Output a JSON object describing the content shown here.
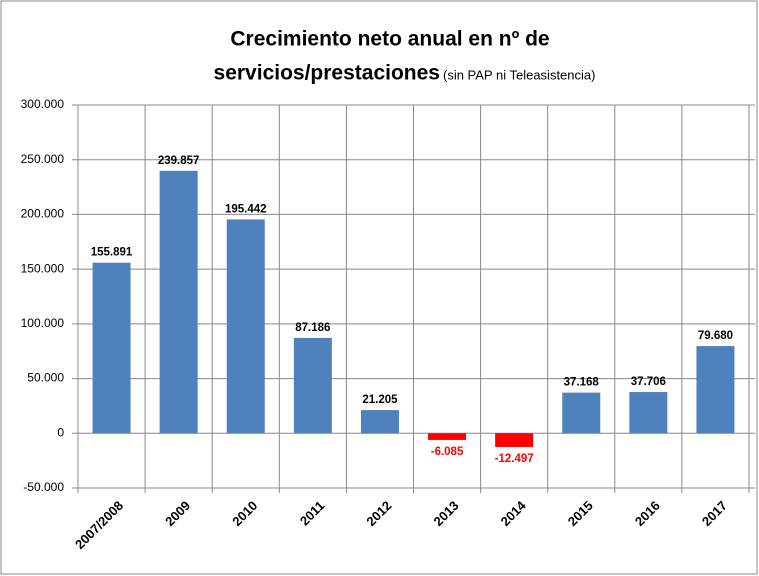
{
  "chart_data": {
    "type": "bar",
    "title": [
      "Crecimiento neto anual en nº de",
      "servicios/prestaciones"
    ],
    "subtitle": "(sin PAP ni Teleasistencia)",
    "categories": [
      "2007/2008",
      "2009",
      "2010",
      "2011",
      "2012",
      "2013",
      "2014",
      "2015",
      "2016",
      "2017"
    ],
    "values": [
      155891,
      239857,
      195442,
      87186,
      21205,
      -6085,
      -12497,
      37168,
      37706,
      79680
    ],
    "value_labels": [
      "155.891",
      "239.857",
      "195.442",
      "87.186",
      "21.205",
      "-6.085",
      "-12.497",
      "37.168",
      "37.706",
      "79.680"
    ],
    "colors": [
      "#4f81bd",
      "#4f81bd",
      "#4f81bd",
      "#4f81bd",
      "#4f81bd",
      "#ff0000",
      "#ff0000",
      "#4f81bd",
      "#4f81bd",
      "#4f81bd"
    ],
    "value_label_colors": [
      "#000000",
      "#000000",
      "#000000",
      "#000000",
      "#000000",
      "#ff0000",
      "#ff0000",
      "#000000",
      "#000000",
      "#000000"
    ],
    "ylim": [
      -50000,
      300000
    ],
    "yticks": [
      {
        "value": -50000,
        "label": "-50.000"
      },
      0,
      {
        "value": 50000,
        "label": "50.000"
      },
      {
        "value": 100000,
        "label": "100.000"
      },
      {
        "value": 150000,
        "label": "150.000"
      },
      {
        "value": 200000,
        "label": "200.000"
      },
      {
        "value": 250000,
        "label": "250.000"
      },
      {
        "value": 300000,
        "label": "300.000"
      }
    ],
    "grid": true
  }
}
